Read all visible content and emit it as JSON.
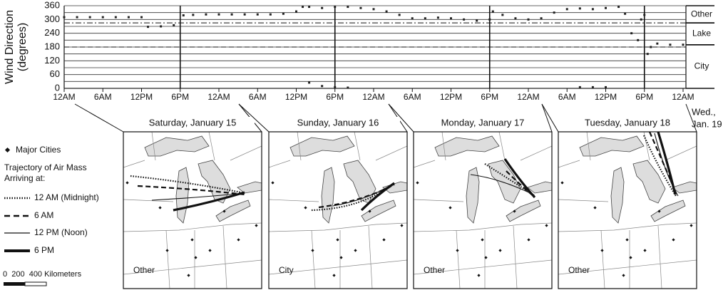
{
  "chart_data": {
    "type": "scatter",
    "y_label": [
      "Wind Direction",
      "(degrees)"
    ],
    "xlim": [
      0,
      96
    ],
    "ylim": [
      0,
      360
    ],
    "yticks": [
      0,
      60,
      120,
      180,
      240,
      300,
      360
    ],
    "y_gridlines": [
      30,
      90,
      150,
      210,
      270,
      330
    ],
    "xticks": [
      {
        "value": 0,
        "label": "12AM"
      },
      {
        "value": 6,
        "label": "6AM"
      },
      {
        "value": 12,
        "label": "12PM"
      },
      {
        "value": 18,
        "label": "6PM"
      },
      {
        "value": 24,
        "label": "12AM"
      },
      {
        "value": 30,
        "label": "6AM"
      },
      {
        "value": 36,
        "label": "12PM"
      },
      {
        "value": 42,
        "label": "6PM"
      },
      {
        "value": 48,
        "label": "12AM"
      },
      {
        "value": 54,
        "label": "6AM"
      },
      {
        "value": 60,
        "label": "12PM"
      },
      {
        "value": 66,
        "label": "6PM"
      },
      {
        "value": 72,
        "label": "12AM"
      },
      {
        "value": 78,
        "label": "6AM"
      },
      {
        "value": 84,
        "label": "12PM"
      },
      {
        "value": 90,
        "label": "6PM"
      },
      {
        "value": 96,
        "label": "12AM"
      }
    ],
    "vlines": [
      18,
      42,
      66,
      90
    ],
    "reference_lines": [
      {
        "value": 285,
        "style": "dashdot"
      },
      {
        "value": 180,
        "style": "dashed"
      }
    ],
    "regions": [
      {
        "name": "Other",
        "range": [
          285,
          360
        ]
      },
      {
        "name": "Lake",
        "range": [
          190,
          285
        ]
      },
      {
        "name": "City",
        "range": [
          0,
          190
        ]
      }
    ],
    "color": "#222222",
    "x": [
      0,
      2,
      4,
      6,
      8,
      10,
      12,
      13,
      15,
      17,
      18.5,
      20,
      22,
      24,
      26,
      28,
      30,
      32,
      34,
      36,
      37,
      38,
      40,
      42,
      44,
      38,
      40,
      42,
      44,
      46,
      48,
      50,
      52,
      54,
      56,
      58,
      60,
      62,
      64,
      66,
      66.5,
      68,
      70,
      72,
      74,
      76,
      78,
      80,
      82,
      84,
      80,
      82,
      84,
      86,
      87,
      88,
      89,
      89.5,
      90,
      90.5,
      91,
      92,
      94,
      96
    ],
    "values": [
      310,
      310,
      310,
      310,
      310,
      310,
      310,
      268,
      270,
      275,
      318,
      320,
      322,
      322,
      322,
      322,
      322,
      322,
      325,
      335,
      355,
      25,
      10,
      5,
      3,
      355,
      350,
      355,
      355,
      350,
      345,
      335,
      320,
      305,
      305,
      308,
      305,
      300,
      295,
      300,
      335,
      320,
      305,
      300,
      305,
      330,
      345,
      5,
      5,
      5,
      348,
      345,
      350,
      355,
      325,
      240,
      210,
      300,
      320,
      150,
      180,
      195,
      190,
      190
    ]
  },
  "panels": [
    {
      "title": "Saturday, January 15",
      "region_label": "Other"
    },
    {
      "title": "Sunday, January 16",
      "region_label": "City"
    },
    {
      "title": "Monday, January 17",
      "region_label": "Other"
    },
    {
      "title": "Tuesday, January 18",
      "region_label": "Other"
    }
  ],
  "date_note": [
    "Wed.,",
    "Jan. 19"
  ],
  "legend": {
    "cities": "Major Cities",
    "title": [
      "Trajectory of Air Mass",
      "Arriving at:"
    ],
    "entries": [
      "12 AM (Midnight)",
      "6 AM",
      "12 PM (Noon)",
      "6 PM"
    ],
    "scale": "0  200  400 Kilometers"
  }
}
